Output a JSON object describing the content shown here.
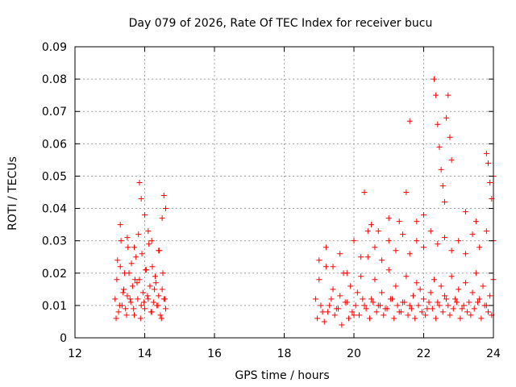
{
  "chart_data": {
    "type": "scatter",
    "title": "Day 079 of 2026, Rate Of TEC Index for receiver bucu",
    "xlabel": "GPS time / hours",
    "ylabel": "ROTI / TECUs",
    "xlim": [
      12,
      24
    ],
    "ylim": [
      0,
      0.09
    ],
    "x_ticks": [
      "12",
      "14",
      "16",
      "18",
      "20",
      "22",
      "24"
    ],
    "y_ticks": [
      "0",
      "0.01",
      "0.02",
      "0.03",
      "0.04",
      "0.05",
      "0.06",
      "0.07",
      "0.08",
      "0.09"
    ],
    "grid": true,
    "marker": "+",
    "color": "#ff0000",
    "series": [
      {
        "x": [
          13.15,
          13.2,
          13.25,
          13.3,
          13.35,
          13.4,
          13.45,
          13.5,
          13.55,
          13.6,
          13.65,
          13.7,
          13.75,
          13.8,
          13.85,
          13.9,
          13.95,
          14.0,
          14.05,
          14.1,
          14.15,
          14.2,
          14.25,
          14.3,
          14.35,
          14.4,
          14.45,
          14.5,
          14.55,
          14.6,
          13.18,
          13.28,
          13.38,
          13.48,
          13.58,
          13.68,
          13.78,
          13.88,
          13.98,
          14.08,
          14.18,
          14.28,
          14.38,
          14.48,
          14.58,
          13.22,
          13.32,
          13.42,
          13.52,
          13.62,
          13.72,
          13.82,
          13.92,
          14.02,
          14.12,
          14.22,
          14.32,
          14.42,
          14.52,
          13.3,
          13.5,
          13.7,
          13.85,
          13.9,
          14.0,
          14.1,
          14.2,
          14.4,
          14.5,
          14.55,
          14.6,
          18.9,
          19.0,
          19.1,
          19.2,
          19.3,
          19.4,
          19.5,
          19.6,
          19.7,
          19.8,
          19.9,
          20.0,
          20.1,
          20.2,
          20.3,
          20.4,
          20.5,
          20.6,
          20.7,
          20.8,
          20.9,
          21.0,
          21.1,
          21.2,
          21.3,
          21.4,
          21.5,
          21.6,
          21.7,
          21.8,
          21.9,
          22.0,
          22.1,
          22.2,
          22.3,
          22.4,
          22.5,
          22.6,
          22.7,
          22.8,
          22.9,
          23.0,
          23.1,
          23.2,
          23.3,
          23.4,
          23.5,
          23.6,
          23.7,
          23.8,
          23.9,
          24.0,
          18.95,
          19.05,
          19.15,
          19.25,
          19.35,
          19.45,
          19.55,
          19.65,
          19.75,
          19.85,
          19.95,
          20.05,
          20.15,
          20.25,
          20.35,
          20.45,
          20.55,
          20.65,
          20.75,
          20.85,
          20.95,
          21.05,
          21.15,
          21.25,
          21.35,
          21.45,
          21.55,
          21.65,
          21.75,
          21.85,
          21.95,
          22.05,
          22.15,
          22.25,
          22.35,
          22.45,
          22.55,
          22.65,
          22.75,
          22.85,
          22.95,
          23.05,
          23.15,
          23.25,
          23.35,
          23.45,
          23.55,
          23.65,
          23.75,
          23.85,
          23.95,
          19.0,
          19.2,
          19.4,
          19.6,
          19.8,
          20.0,
          20.2,
          20.4,
          20.6,
          20.8,
          21.0,
          21.2,
          21.4,
          21.6,
          21.8,
          22.0,
          22.2,
          22.4,
          22.6,
          22.8,
          23.0,
          23.2,
          23.4,
          23.6,
          23.8,
          24.0,
          20.3,
          20.5,
          20.7,
          21.0,
          21.3,
          21.5,
          21.6,
          21.8,
          22.0,
          22.3,
          22.35,
          22.4,
          22.45,
          22.5,
          22.55,
          22.6,
          22.65,
          22.7,
          22.75,
          22.8,
          23.2,
          23.5,
          23.8,
          23.85,
          23.9,
          23.95,
          24.0
        ],
        "y": [
          0.012,
          0.018,
          0.008,
          0.022,
          0.01,
          0.015,
          0.009,
          0.013,
          0.02,
          0.011,
          0.016,
          0.007,
          0.025,
          0.012,
          0.018,
          0.01,
          0.014,
          0.009,
          0.021,
          0.012,
          0.016,
          0.008,
          0.011,
          0.019,
          0.01,
          0.013,
          0.007,
          0.015,
          0.012,
          0.009,
          0.006,
          0.01,
          0.014,
          0.007,
          0.012,
          0.009,
          0.017,
          0.006,
          0.011,
          0.013,
          0.008,
          0.015,
          0.01,
          0.006,
          0.012,
          0.024,
          0.03,
          0.02,
          0.028,
          0.023,
          0.018,
          0.032,
          0.026,
          0.021,
          0.029,
          0.022,
          0.017,
          0.027,
          0.02,
          0.035,
          0.031,
          0.028,
          0.048,
          0.043,
          0.038,
          0.033,
          0.03,
          0.027,
          0.037,
          0.044,
          0.04,
          0.012,
          0.018,
          0.008,
          0.022,
          0.01,
          0.015,
          0.009,
          0.013,
          0.02,
          0.011,
          0.016,
          0.007,
          0.014,
          0.019,
          0.01,
          0.025,
          0.012,
          0.018,
          0.01,
          0.014,
          0.009,
          0.021,
          0.012,
          0.016,
          0.008,
          0.011,
          0.019,
          0.01,
          0.013,
          0.017,
          0.015,
          0.012,
          0.009,
          0.014,
          0.018,
          0.011,
          0.016,
          0.013,
          0.01,
          0.019,
          0.012,
          0.015,
          0.009,
          0.017,
          0.011,
          0.014,
          0.02,
          0.012,
          0.016,
          0.01,
          0.013,
          0.018,
          0.006,
          0.01,
          0.005,
          0.008,
          0.012,
          0.007,
          0.009,
          0.004,
          0.011,
          0.006,
          0.008,
          0.01,
          0.007,
          0.012,
          0.009,
          0.006,
          0.011,
          0.008,
          0.01,
          0.007,
          0.009,
          0.012,
          0.006,
          0.01,
          0.008,
          0.011,
          0.007,
          0.009,
          0.006,
          0.01,
          0.008,
          0.007,
          0.011,
          0.009,
          0.006,
          0.01,
          0.008,
          0.012,
          0.007,
          0.009,
          0.011,
          0.006,
          0.01,
          0.008,
          0.007,
          0.009,
          0.011,
          0.006,
          0.01,
          0.008,
          0.007,
          0.024,
          0.028,
          0.022,
          0.026,
          0.02,
          0.03,
          0.025,
          0.033,
          0.028,
          0.024,
          0.03,
          0.027,
          0.032,
          0.026,
          0.03,
          0.028,
          0.033,
          0.029,
          0.031,
          0.027,
          0.03,
          0.026,
          0.032,
          0.028,
          0.033,
          0.03,
          0.045,
          0.035,
          0.033,
          0.037,
          0.036,
          0.045,
          0.067,
          0.036,
          0.038,
          0.08,
          0.075,
          0.066,
          0.059,
          0.052,
          0.047,
          0.042,
          0.068,
          0.075,
          0.062,
          0.055,
          0.039,
          0.036,
          0.057,
          0.054,
          0.048,
          0.043,
          0.05
        ]
      }
    ]
  }
}
